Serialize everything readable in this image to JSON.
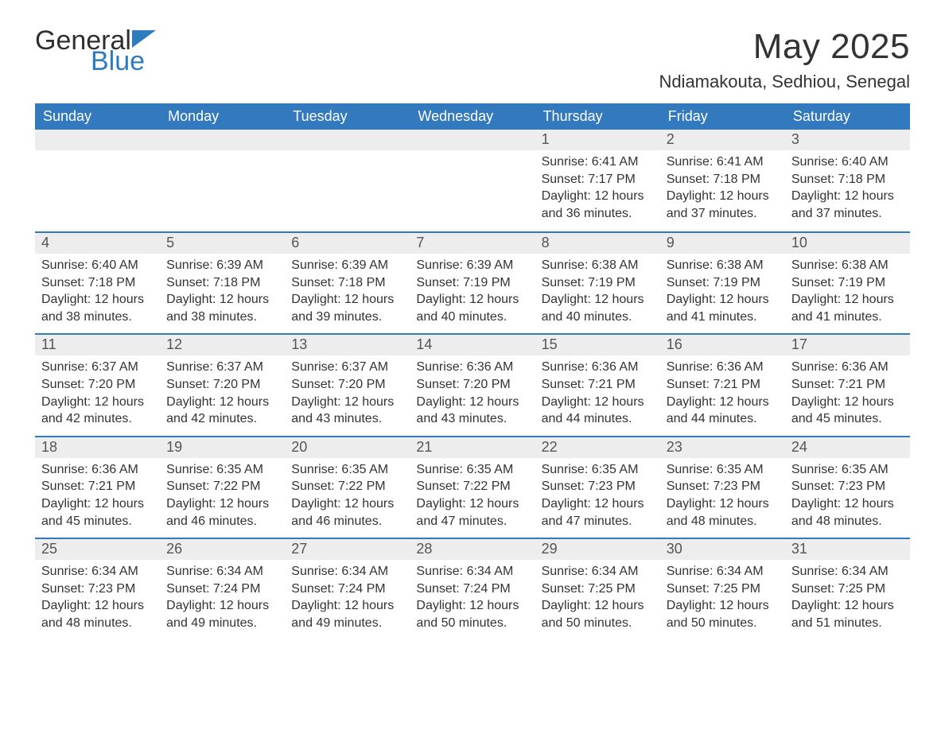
{
  "brand": {
    "text1": "General",
    "text2": "Blue",
    "logo_color": "#2f7bbf"
  },
  "title": "May 2025",
  "location": "Ndiamakouta, Sedhiou, Senegal",
  "colors": {
    "header_bg": "#3279bd",
    "header_text": "#ffffff",
    "daynum_bg": "#ededed",
    "week_border": "#3279bd",
    "text": "#333333",
    "page_bg": "#ffffff"
  },
  "fonts": {
    "body_pt": 16,
    "daynum_pt": 18,
    "header_pt": 18,
    "title_pt": 44,
    "location_pt": 22
  },
  "day_names": [
    "Sunday",
    "Monday",
    "Tuesday",
    "Wednesday",
    "Thursday",
    "Friday",
    "Saturday"
  ],
  "weeks": [
    [
      null,
      null,
      null,
      null,
      {
        "n": "1",
        "sunrise": "6:41 AM",
        "sunset": "7:17 PM",
        "dl": "12 hours and 36 minutes."
      },
      {
        "n": "2",
        "sunrise": "6:41 AM",
        "sunset": "7:18 PM",
        "dl": "12 hours and 37 minutes."
      },
      {
        "n": "3",
        "sunrise": "6:40 AM",
        "sunset": "7:18 PM",
        "dl": "12 hours and 37 minutes."
      }
    ],
    [
      {
        "n": "4",
        "sunrise": "6:40 AM",
        "sunset": "7:18 PM",
        "dl": "12 hours and 38 minutes."
      },
      {
        "n": "5",
        "sunrise": "6:39 AM",
        "sunset": "7:18 PM",
        "dl": "12 hours and 38 minutes."
      },
      {
        "n": "6",
        "sunrise": "6:39 AM",
        "sunset": "7:18 PM",
        "dl": "12 hours and 39 minutes."
      },
      {
        "n": "7",
        "sunrise": "6:39 AM",
        "sunset": "7:19 PM",
        "dl": "12 hours and 40 minutes."
      },
      {
        "n": "8",
        "sunrise": "6:38 AM",
        "sunset": "7:19 PM",
        "dl": "12 hours and 40 minutes."
      },
      {
        "n": "9",
        "sunrise": "6:38 AM",
        "sunset": "7:19 PM",
        "dl": "12 hours and 41 minutes."
      },
      {
        "n": "10",
        "sunrise": "6:38 AM",
        "sunset": "7:19 PM",
        "dl": "12 hours and 41 minutes."
      }
    ],
    [
      {
        "n": "11",
        "sunrise": "6:37 AM",
        "sunset": "7:20 PM",
        "dl": "12 hours and 42 minutes."
      },
      {
        "n": "12",
        "sunrise": "6:37 AM",
        "sunset": "7:20 PM",
        "dl": "12 hours and 42 minutes."
      },
      {
        "n": "13",
        "sunrise": "6:37 AM",
        "sunset": "7:20 PM",
        "dl": "12 hours and 43 minutes."
      },
      {
        "n": "14",
        "sunrise": "6:36 AM",
        "sunset": "7:20 PM",
        "dl": "12 hours and 43 minutes."
      },
      {
        "n": "15",
        "sunrise": "6:36 AM",
        "sunset": "7:21 PM",
        "dl": "12 hours and 44 minutes."
      },
      {
        "n": "16",
        "sunrise": "6:36 AM",
        "sunset": "7:21 PM",
        "dl": "12 hours and 44 minutes."
      },
      {
        "n": "17",
        "sunrise": "6:36 AM",
        "sunset": "7:21 PM",
        "dl": "12 hours and 45 minutes."
      }
    ],
    [
      {
        "n": "18",
        "sunrise": "6:36 AM",
        "sunset": "7:21 PM",
        "dl": "12 hours and 45 minutes."
      },
      {
        "n": "19",
        "sunrise": "6:35 AM",
        "sunset": "7:22 PM",
        "dl": "12 hours and 46 minutes."
      },
      {
        "n": "20",
        "sunrise": "6:35 AM",
        "sunset": "7:22 PM",
        "dl": "12 hours and 46 minutes."
      },
      {
        "n": "21",
        "sunrise": "6:35 AM",
        "sunset": "7:22 PM",
        "dl": "12 hours and 47 minutes."
      },
      {
        "n": "22",
        "sunrise": "6:35 AM",
        "sunset": "7:23 PM",
        "dl": "12 hours and 47 minutes."
      },
      {
        "n": "23",
        "sunrise": "6:35 AM",
        "sunset": "7:23 PM",
        "dl": "12 hours and 48 minutes."
      },
      {
        "n": "24",
        "sunrise": "6:35 AM",
        "sunset": "7:23 PM",
        "dl": "12 hours and 48 minutes."
      }
    ],
    [
      {
        "n": "25",
        "sunrise": "6:34 AM",
        "sunset": "7:23 PM",
        "dl": "12 hours and 48 minutes."
      },
      {
        "n": "26",
        "sunrise": "6:34 AM",
        "sunset": "7:24 PM",
        "dl": "12 hours and 49 minutes."
      },
      {
        "n": "27",
        "sunrise": "6:34 AM",
        "sunset": "7:24 PM",
        "dl": "12 hours and 49 minutes."
      },
      {
        "n": "28",
        "sunrise": "6:34 AM",
        "sunset": "7:24 PM",
        "dl": "12 hours and 50 minutes."
      },
      {
        "n": "29",
        "sunrise": "6:34 AM",
        "sunset": "7:25 PM",
        "dl": "12 hours and 50 minutes."
      },
      {
        "n": "30",
        "sunrise": "6:34 AM",
        "sunset": "7:25 PM",
        "dl": "12 hours and 50 minutes."
      },
      {
        "n": "31",
        "sunrise": "6:34 AM",
        "sunset": "7:25 PM",
        "dl": "12 hours and 51 minutes."
      }
    ]
  ],
  "labels": {
    "sunrise": "Sunrise",
    "sunset": "Sunset",
    "daylight": "Daylight"
  }
}
